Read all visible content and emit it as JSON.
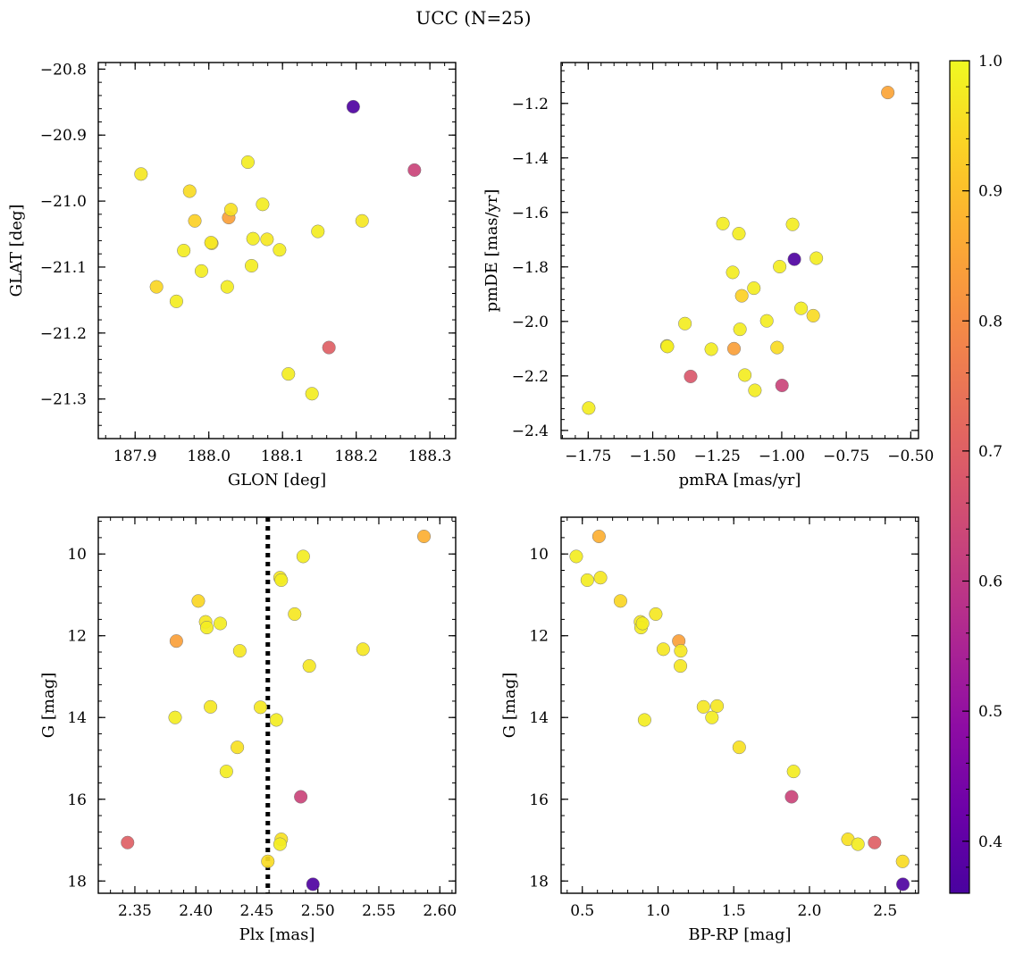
{
  "figure": {
    "title": "UCC (N=25)"
  },
  "colorbar": {
    "range": [
      0.36,
      1.0
    ],
    "ticks": [
      0.4,
      0.5,
      0.6,
      0.7,
      0.8,
      0.9,
      1.0
    ],
    "tick_labels": [
      "0.4",
      "0.5",
      "0.6",
      "0.7",
      "0.8",
      "0.9",
      "1.0"
    ],
    "colormap": "plasma"
  },
  "chart_data": [
    {
      "type": "scatter",
      "id": "glon-glat",
      "xlabel": "GLON [deg]",
      "ylabel": "GLAT [deg]",
      "xlim": [
        187.85,
        188.335
      ],
      "ylim": [
        -21.36,
        -20.79
      ],
      "x_invert": false,
      "y_invert": false,
      "xticks": [
        187.9,
        188.0,
        188.1,
        188.2,
        188.3
      ],
      "xtick_labels": [
        "187.9",
        "188.0",
        "188.1",
        "188.2",
        "188.3"
      ],
      "yticks": [
        -21.3,
        -21.2,
        -21.1,
        -21.0,
        -20.9,
        -20.8
      ],
      "ytick_labels": [
        "−21.3",
        "−21.2",
        "−21.1",
        "−21.0",
        "−20.9",
        "−20.8"
      ],
      "points": [
        {
          "x": 187.908,
          "y": -20.959,
          "c": 0.97
        },
        {
          "x": 187.929,
          "y": -21.13,
          "c": 0.94
        },
        {
          "x": 187.956,
          "y": -21.152,
          "c": 0.98
        },
        {
          "x": 187.966,
          "y": -21.075,
          "c": 0.98
        },
        {
          "x": 187.974,
          "y": -20.985,
          "c": 0.95
        },
        {
          "x": 187.981,
          "y": -21.03,
          "c": 0.93
        },
        {
          "x": 187.99,
          "y": -21.106,
          "c": 0.98
        },
        {
          "x": 188.003,
          "y": -21.063,
          "c": 0.97
        },
        {
          "x": 188.004,
          "y": -21.064,
          "c": 0.95
        },
        {
          "x": 188.025,
          "y": -21.13,
          "c": 0.98
        },
        {
          "x": 188.027,
          "y": -21.025,
          "c": 0.84
        },
        {
          "x": 188.03,
          "y": -21.013,
          "c": 0.96
        },
        {
          "x": 188.053,
          "y": -20.941,
          "c": 0.98
        },
        {
          "x": 188.058,
          "y": -21.098,
          "c": 0.98
        },
        {
          "x": 188.06,
          "y": -21.057,
          "c": 0.98
        },
        {
          "x": 188.073,
          "y": -21.005,
          "c": 0.98
        },
        {
          "x": 188.079,
          "y": -21.058,
          "c": 0.97
        },
        {
          "x": 188.096,
          "y": -21.074,
          "c": 0.98
        },
        {
          "x": 188.108,
          "y": -21.262,
          "c": 0.98
        },
        {
          "x": 188.14,
          "y": -21.292,
          "c": 0.98
        },
        {
          "x": 188.148,
          "y": -21.046,
          "c": 0.98
        },
        {
          "x": 188.163,
          "y": -21.222,
          "c": 0.7
        },
        {
          "x": 188.196,
          "y": -20.857,
          "c": 0.37
        },
        {
          "x": 188.208,
          "y": -21.03,
          "c": 0.97
        },
        {
          "x": 188.279,
          "y": -20.953,
          "c": 0.63
        }
      ]
    },
    {
      "type": "scatter",
      "id": "pmra-pmde",
      "xlabel": "pmRA [mas/yr]",
      "ylabel": "pmDE [mas/yr]",
      "xlim": [
        -1.855,
        -0.47
      ],
      "ylim": [
        -2.43,
        -1.05
      ],
      "x_invert": false,
      "y_invert": false,
      "xticks": [
        -1.75,
        -1.5,
        -1.25,
        -1.0,
        -0.75,
        -0.5
      ],
      "xtick_labels": [
        "−1.75",
        "−1.50",
        "−1.25",
        "−1.00",
        "−0.75",
        "−0.50"
      ],
      "yticks": [
        -2.4,
        -2.2,
        -2.0,
        -1.8,
        -1.6,
        -1.4,
        -1.2
      ],
      "ytick_labels": [
        "−2.4",
        "−2.2",
        "−2.0",
        "−1.8",
        "−1.6",
        "−1.4",
        "−1.2"
      ],
      "points": [
        {
          "x": -1.748,
          "y": -2.318,
          "c": 0.98
        },
        {
          "x": -1.445,
          "y": -2.09,
          "c": 0.97
        },
        {
          "x": -1.443,
          "y": -2.092,
          "c": 0.98
        },
        {
          "x": -1.375,
          "y": -2.008,
          "c": 0.98
        },
        {
          "x": -1.353,
          "y": -2.202,
          "c": 0.68
        },
        {
          "x": -1.273,
          "y": -2.102,
          "c": 0.98
        },
        {
          "x": -1.228,
          "y": -1.641,
          "c": 0.98
        },
        {
          "x": -1.19,
          "y": -1.82,
          "c": 0.98
        },
        {
          "x": -1.185,
          "y": -2.1,
          "c": 0.84
        },
        {
          "x": -1.166,
          "y": -1.678,
          "c": 0.98
        },
        {
          "x": -1.162,
          "y": -2.029,
          "c": 0.98
        },
        {
          "x": -1.155,
          "y": -1.906,
          "c": 0.93
        },
        {
          "x": -1.143,
          "y": -2.197,
          "c": 0.98
        },
        {
          "x": -1.108,
          "y": -1.878,
          "c": 0.98
        },
        {
          "x": -1.104,
          "y": -2.253,
          "c": 0.98
        },
        {
          "x": -1.058,
          "y": -1.998,
          "c": 0.98
        },
        {
          "x": -1.018,
          "y": -2.096,
          "c": 0.95
        },
        {
          "x": -1.008,
          "y": -1.799,
          "c": 0.98
        },
        {
          "x": -0.999,
          "y": -2.235,
          "c": 0.63
        },
        {
          "x": -0.958,
          "y": -1.644,
          "c": 0.98
        },
        {
          "x": -0.951,
          "y": -1.772,
          "c": 0.37
        },
        {
          "x": -0.925,
          "y": -1.952,
          "c": 0.98
        },
        {
          "x": -0.878,
          "y": -1.979,
          "c": 0.95
        },
        {
          "x": -0.866,
          "y": -1.768,
          "c": 0.98
        },
        {
          "x": -0.589,
          "y": -1.16,
          "c": 0.85
        }
      ]
    },
    {
      "type": "scatter",
      "id": "plx-g",
      "xlabel": "Plx [mas]",
      "ylabel": "G [mag]",
      "xlim": [
        2.32,
        2.613
      ],
      "ylim": [
        18.3,
        9.1
      ],
      "x_invert": false,
      "y_invert": true,
      "xticks": [
        2.35,
        2.4,
        2.45,
        2.5,
        2.55,
        2.6
      ],
      "xtick_labels": [
        "2.35",
        "2.40",
        "2.45",
        "2.50",
        "2.55",
        "2.60"
      ],
      "yticks": [
        10,
        12,
        14,
        16,
        18
      ],
      "ytick_labels": [
        "10",
        "12",
        "14",
        "16",
        "18"
      ],
      "vline": 2.459,
      "points": [
        {
          "x": 2.587,
          "y": 9.57,
          "c": 0.87
        },
        {
          "x": 2.488,
          "y": 10.06,
          "c": 0.98
        },
        {
          "x": 2.469,
          "y": 10.58,
          "c": 0.97
        },
        {
          "x": 2.47,
          "y": 10.64,
          "c": 0.98
        },
        {
          "x": 2.402,
          "y": 11.15,
          "c": 0.94
        },
        {
          "x": 2.481,
          "y": 11.47,
          "c": 0.97
        },
        {
          "x": 2.408,
          "y": 11.66,
          "c": 0.97
        },
        {
          "x": 2.42,
          "y": 11.7,
          "c": 0.98
        },
        {
          "x": 2.409,
          "y": 11.8,
          "c": 0.98
        },
        {
          "x": 2.384,
          "y": 12.13,
          "c": 0.84
        },
        {
          "x": 2.537,
          "y": 12.33,
          "c": 0.97
        },
        {
          "x": 2.436,
          "y": 12.37,
          "c": 0.97
        },
        {
          "x": 2.493,
          "y": 12.74,
          "c": 0.97
        },
        {
          "x": 2.412,
          "y": 13.74,
          "c": 0.97
        },
        {
          "x": 2.453,
          "y": 13.75,
          "c": 0.97
        },
        {
          "x": 2.383,
          "y": 14.0,
          "c": 0.98
        },
        {
          "x": 2.466,
          "y": 14.06,
          "c": 0.98
        },
        {
          "x": 2.434,
          "y": 14.73,
          "c": 0.96
        },
        {
          "x": 2.425,
          "y": 15.32,
          "c": 0.98
        },
        {
          "x": 2.486,
          "y": 15.94,
          "c": 0.63
        },
        {
          "x": 2.47,
          "y": 16.98,
          "c": 0.96
        },
        {
          "x": 2.469,
          "y": 17.1,
          "c": 0.98
        },
        {
          "x": 2.344,
          "y": 17.06,
          "c": 0.7
        },
        {
          "x": 2.459,
          "y": 17.52,
          "c": 0.95
        },
        {
          "x": 2.496,
          "y": 18.08,
          "c": 0.37
        }
      ]
    },
    {
      "type": "scatter",
      "id": "bprp-g",
      "xlabel": "BP-RP [mag]",
      "ylabel": "G [mag]",
      "xlim": [
        0.36,
        2.72
      ],
      "ylim": [
        18.3,
        9.1
      ],
      "x_invert": false,
      "y_invert": true,
      "xticks": [
        0.5,
        1.0,
        1.5,
        2.0,
        2.5
      ],
      "xtick_labels": [
        "0.5",
        "1.0",
        "1.5",
        "2.0",
        "2.5"
      ],
      "yticks": [
        10,
        12,
        14,
        16,
        18
      ],
      "ytick_labels": [
        "10",
        "12",
        "14",
        "16",
        "18"
      ],
      "points": [
        {
          "x": 0.46,
          "y": 10.06,
          "c": 0.98
        },
        {
          "x": 0.533,
          "y": 10.64,
          "c": 0.98
        },
        {
          "x": 0.61,
          "y": 9.57,
          "c": 0.87
        },
        {
          "x": 0.62,
          "y": 10.58,
          "c": 0.97
        },
        {
          "x": 0.752,
          "y": 11.15,
          "c": 0.94
        },
        {
          "x": 0.884,
          "y": 11.66,
          "c": 0.97
        },
        {
          "x": 0.888,
          "y": 11.8,
          "c": 0.98
        },
        {
          "x": 0.898,
          "y": 11.7,
          "c": 0.98
        },
        {
          "x": 0.911,
          "y": 14.06,
          "c": 0.98
        },
        {
          "x": 0.985,
          "y": 11.47,
          "c": 0.97
        },
        {
          "x": 1.035,
          "y": 12.33,
          "c": 0.97
        },
        {
          "x": 1.137,
          "y": 12.13,
          "c": 0.84
        },
        {
          "x": 1.15,
          "y": 12.37,
          "c": 0.97
        },
        {
          "x": 1.148,
          "y": 12.74,
          "c": 0.97
        },
        {
          "x": 1.3,
          "y": 13.74,
          "c": 0.97
        },
        {
          "x": 1.356,
          "y": 14.0,
          "c": 0.98
        },
        {
          "x": 1.39,
          "y": 13.72,
          "c": 0.97
        },
        {
          "x": 1.536,
          "y": 14.73,
          "c": 0.96
        },
        {
          "x": 1.882,
          "y": 15.94,
          "c": 0.63
        },
        {
          "x": 1.895,
          "y": 15.32,
          "c": 0.98
        },
        {
          "x": 2.254,
          "y": 16.98,
          "c": 0.96
        },
        {
          "x": 2.32,
          "y": 17.1,
          "c": 0.98
        },
        {
          "x": 2.43,
          "y": 17.06,
          "c": 0.7
        },
        {
          "x": 2.615,
          "y": 17.52,
          "c": 0.95
        },
        {
          "x": 2.617,
          "y": 18.08,
          "c": 0.37
        }
      ]
    }
  ]
}
